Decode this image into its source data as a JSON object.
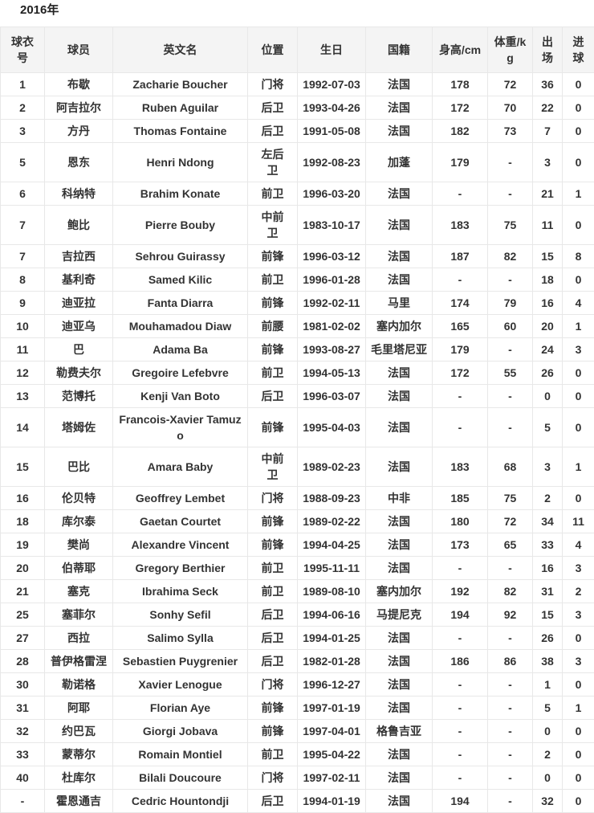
{
  "page": {
    "title": "2016年"
  },
  "table": {
    "columns": [
      "球衣号",
      "球员",
      "英文名",
      "位置",
      "生日",
      "国籍",
      "身高/cm",
      "体重/kg",
      "出场",
      "进球"
    ],
    "column_keys": [
      "jersey-number",
      "player-name-cn",
      "player-name-en",
      "position",
      "birthday",
      "nationality",
      "height",
      "weight",
      "appearances",
      "goals"
    ],
    "rows": [
      [
        "1",
        "布歇",
        "Zacharie Boucher",
        "门将",
        "1992-07-03",
        "法国",
        "178",
        "72",
        "36",
        "0"
      ],
      [
        "2",
        "阿吉拉尔",
        "Ruben Aguilar",
        "后卫",
        "1993-04-26",
        "法国",
        "172",
        "70",
        "22",
        "0"
      ],
      [
        "3",
        "方丹",
        "Thomas Fontaine",
        "后卫",
        "1991-05-08",
        "法国",
        "182",
        "73",
        "7",
        "0"
      ],
      [
        "5",
        "恩东",
        "Henri Ndong",
        "左后卫",
        "1992-08-23",
        "加蓬",
        "179",
        "-",
        "3",
        "0"
      ],
      [
        "6",
        "科纳特",
        "Brahim Konate",
        "前卫",
        "1996-03-20",
        "法国",
        "-",
        "-",
        "21",
        "1"
      ],
      [
        "7",
        "鲍比",
        "Pierre Bouby",
        "中前卫",
        "1983-10-17",
        "法国",
        "183",
        "75",
        "11",
        "0"
      ],
      [
        "7",
        "吉拉西",
        "Sehrou Guirassy",
        "前锋",
        "1996-03-12",
        "法国",
        "187",
        "82",
        "15",
        "8"
      ],
      [
        "8",
        "基利奇",
        "Samed Kilic",
        "前卫",
        "1996-01-28",
        "法国",
        "-",
        "-",
        "18",
        "0"
      ],
      [
        "9",
        "迪亚拉",
        "Fanta Diarra",
        "前锋",
        "1992-02-11",
        "马里",
        "174",
        "79",
        "16",
        "4"
      ],
      [
        "10",
        "迪亚乌",
        "Mouhamadou Diaw",
        "前腰",
        "1981-02-02",
        "塞内加尔",
        "165",
        "60",
        "20",
        "1"
      ],
      [
        "11",
        "巴",
        "Adama Ba",
        "前锋",
        "1993-08-27",
        "毛里塔尼亚",
        "179",
        "-",
        "24",
        "3"
      ],
      [
        "12",
        "勒费夫尔",
        "Gregoire Lefebvre",
        "前卫",
        "1994-05-13",
        "法国",
        "172",
        "55",
        "26",
        "0"
      ],
      [
        "13",
        "范博托",
        "Kenji Van Boto",
        "后卫",
        "1996-03-07",
        "法国",
        "-",
        "-",
        "0",
        "0"
      ],
      [
        "14",
        "塔姆佐",
        "Francois-Xavier Tamuzo",
        "前锋",
        "1995-04-03",
        "法国",
        "-",
        "-",
        "5",
        "0"
      ],
      [
        "15",
        "巴比",
        "Amara Baby",
        "中前卫",
        "1989-02-23",
        "法国",
        "183",
        "68",
        "3",
        "1"
      ],
      [
        "16",
        "伦贝特",
        "Geoffrey Lembet",
        "门将",
        "1988-09-23",
        "中非",
        "185",
        "75",
        "2",
        "0"
      ],
      [
        "18",
        "库尔泰",
        "Gaetan Courtet",
        "前锋",
        "1989-02-22",
        "法国",
        "180",
        "72",
        "34",
        "11"
      ],
      [
        "19",
        "樊尚",
        "Alexandre Vincent",
        "前锋",
        "1994-04-25",
        "法国",
        "173",
        "65",
        "33",
        "4"
      ],
      [
        "20",
        "伯蒂耶",
        "Gregory Berthier",
        "前卫",
        "1995-11-11",
        "法国",
        "-",
        "-",
        "16",
        "3"
      ],
      [
        "21",
        "塞克",
        "Ibrahima Seck",
        "前卫",
        "1989-08-10",
        "塞内加尔",
        "192",
        "82",
        "31",
        "2"
      ],
      [
        "25",
        "塞菲尔",
        "Sonhy Sefil",
        "后卫",
        "1994-06-16",
        "马提尼克",
        "194",
        "92",
        "15",
        "3"
      ],
      [
        "27",
        "西拉",
        "Salimo Sylla",
        "后卫",
        "1994-01-25",
        "法国",
        "-",
        "-",
        "26",
        "0"
      ],
      [
        "28",
        "普伊格雷涅",
        "Sebastien Puygrenier",
        "后卫",
        "1982-01-28",
        "法国",
        "186",
        "86",
        "38",
        "3"
      ],
      [
        "30",
        "勒诺格",
        "Xavier Lenogue",
        "门将",
        "1996-12-27",
        "法国",
        "-",
        "-",
        "1",
        "0"
      ],
      [
        "31",
        "阿耶",
        "Florian Aye",
        "前锋",
        "1997-01-19",
        "法国",
        "-",
        "-",
        "5",
        "1"
      ],
      [
        "32",
        "约巴瓦",
        "Giorgi Jobava",
        "前锋",
        "1997-04-01",
        "格鲁吉亚",
        "-",
        "-",
        "0",
        "0"
      ],
      [
        "33",
        "蒙蒂尔",
        "Romain Montiel",
        "前卫",
        "1995-04-22",
        "法国",
        "-",
        "-",
        "2",
        "0"
      ],
      [
        "40",
        "杜库尔",
        "Bilali Doucoure",
        "门将",
        "1997-02-11",
        "法国",
        "-",
        "-",
        "0",
        "0"
      ],
      [
        "-",
        "霍恩通吉",
        "Cedric Hountondji",
        "后卫",
        "1994-01-19",
        "法国",
        "194",
        "-",
        "32",
        "0"
      ]
    ]
  },
  "colors": {
    "header_background": "#f4f4f4",
    "border": "#e8e8e8",
    "text": "#333333",
    "row_background": "#ffffff"
  }
}
